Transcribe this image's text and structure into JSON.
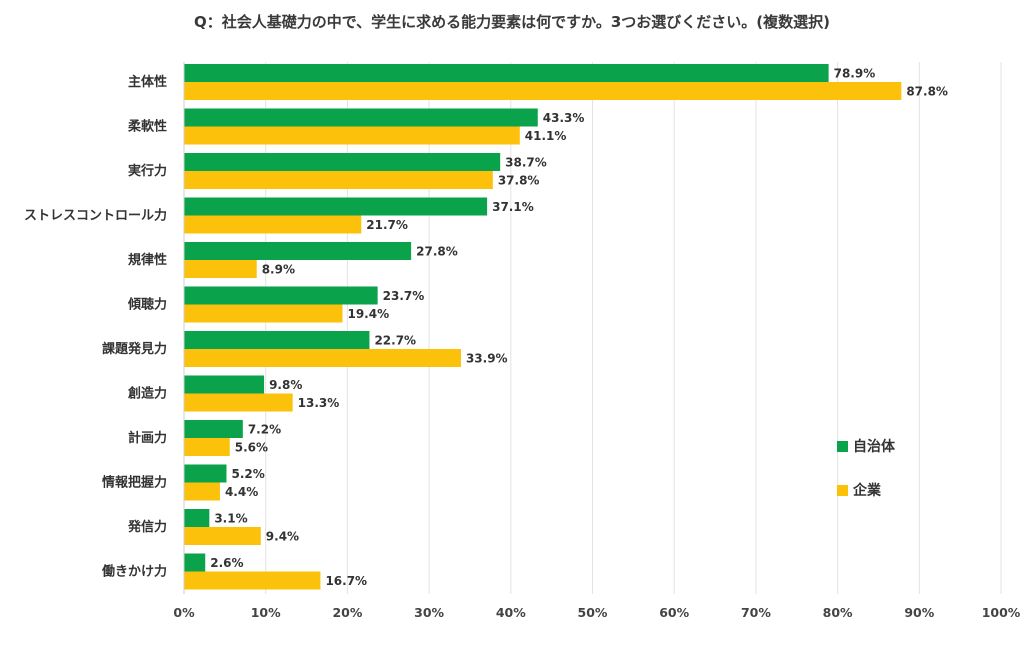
{
  "chart_data": {
    "type": "bar",
    "orientation": "horizontal",
    "title": "Q：社会人基礎力の中で、学生に求める能力要素は何ですか。3つお選びください。(複数選択)",
    "categories": [
      "主体性",
      "柔軟性",
      "実行力",
      "ストレスコントロール力",
      "規律性",
      "傾聴力",
      "課題発見力",
      "創造力",
      "計画力",
      "情報把握力",
      "発信力",
      "働きかけ力"
    ],
    "series": [
      {
        "name": "自治体",
        "color": "#0aa24a",
        "values": [
          78.9,
          43.3,
          38.7,
          37.1,
          27.8,
          23.7,
          22.7,
          9.8,
          7.2,
          5.2,
          3.1,
          2.6
        ]
      },
      {
        "name": "企業",
        "color": "#fcc10a",
        "values": [
          87.8,
          41.1,
          37.8,
          21.7,
          8.9,
          19.4,
          33.9,
          13.3,
          5.6,
          4.4,
          9.4,
          16.7
        ]
      }
    ],
    "xlim": [
      0,
      100
    ],
    "ticks": [
      "0%",
      "10%",
      "20%",
      "30%",
      "40%",
      "50%",
      "60%",
      "70%",
      "80%",
      "90%",
      "100%"
    ],
    "value_suffix": "%",
    "grid": true,
    "legend_position": "right"
  }
}
